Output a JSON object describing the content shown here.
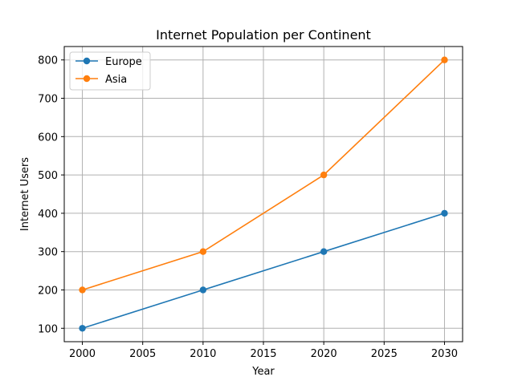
{
  "chart_data": {
    "type": "line",
    "title": "Internet Population per Continent",
    "xlabel": "Year",
    "ylabel": "Internet Users",
    "x": [
      2000,
      2010,
      2020,
      2030
    ],
    "series": [
      {
        "name": "Europe",
        "values": [
          100,
          200,
          300,
          400
        ],
        "color": "#1f77b4"
      },
      {
        "name": "Asia",
        "values": [
          200,
          300,
          500,
          800
        ],
        "color": "#ff7f0e"
      }
    ],
    "xlim": [
      1998.5,
      2031.5
    ],
    "ylim": [
      65,
      835
    ],
    "xticks": [
      2000,
      2005,
      2010,
      2015,
      2020,
      2025,
      2030
    ],
    "yticks": [
      100,
      200,
      300,
      400,
      500,
      600,
      700,
      800
    ],
    "grid": true,
    "legend_position": "top-left",
    "marker": "circle"
  }
}
